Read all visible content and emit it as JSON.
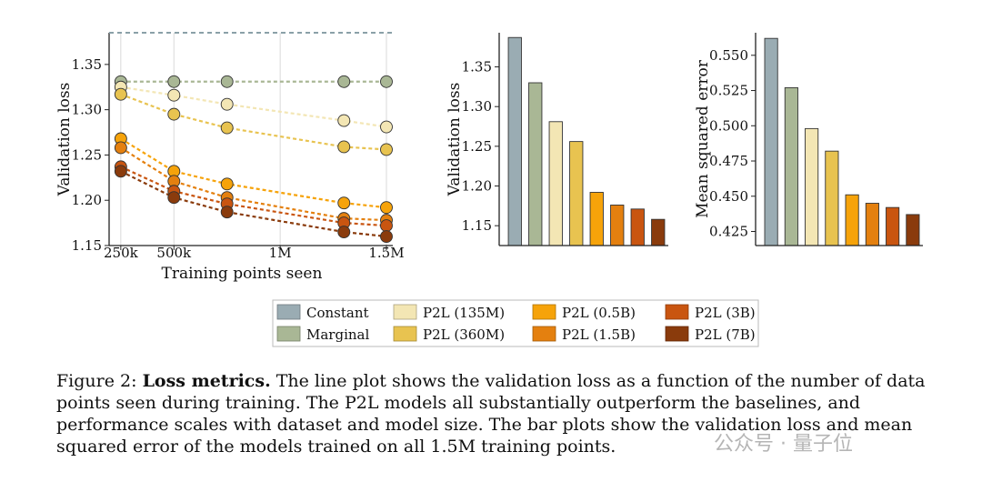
{
  "colors": {
    "Constant": "#9aacb3",
    "Marginal": "#a9b795",
    "P2L (135M)": "#f3e6b4",
    "P2L (360M)": "#e8c350",
    "P2L (0.5B)": "#f6a30a",
    "P2L (1.5B)": "#e4800f",
    "P2L (3B)": "#c95510",
    "P2L (7B)": "#8a3b0c"
  },
  "chart_data": [
    {
      "type": "line",
      "xlabel": "Training points seen",
      "ylabel": "Validation loss",
      "x_ticks": [
        {
          "value": 250000,
          "label": "250k"
        },
        {
          "value": 500000,
          "label": "500k"
        },
        {
          "value": 1000000,
          "label": "1M"
        },
        {
          "value": 1500000,
          "label": "1.5M"
        }
      ],
      "y_ticks": [
        "1.15",
        "1.20",
        "1.25",
        "1.30",
        "1.35"
      ],
      "ylim": [
        1.15,
        1.385
      ],
      "xlim": [
        195000,
        1530000
      ],
      "grid": "vertical",
      "x": [
        250000,
        500000,
        750000,
        1300000,
        1500000
      ],
      "reference_line": 1.385,
      "series": [
        {
          "name": "Constant",
          "values": [
            1.385,
            1.385,
            1.385,
            1.385,
            1.385
          ]
        },
        {
          "name": "Marginal",
          "values": [
            1.331,
            1.331,
            1.331,
            1.331,
            1.331
          ]
        },
        {
          "name": "P2L (135M)",
          "values": [
            1.325,
            1.316,
            1.306,
            1.288,
            1.281
          ]
        },
        {
          "name": "P2L (360M)",
          "values": [
            1.317,
            1.295,
            1.28,
            1.259,
            1.256
          ]
        },
        {
          "name": "P2L (0.5B)",
          "values": [
            1.268,
            1.232,
            1.218,
            1.197,
            1.192
          ]
        },
        {
          "name": "P2L (1.5B)",
          "values": [
            1.258,
            1.221,
            1.203,
            1.18,
            1.178
          ]
        },
        {
          "name": "P2L (3B)",
          "values": [
            1.237,
            1.21,
            1.196,
            1.175,
            1.172
          ]
        },
        {
          "name": "P2L (7B)",
          "values": [
            1.232,
            1.203,
            1.187,
            1.165,
            1.16
          ]
        }
      ]
    },
    {
      "type": "bar",
      "ylabel": "Validation loss",
      "y_ticks": [
        "1.15",
        "1.20",
        "1.25",
        "1.30",
        "1.35"
      ],
      "ylim": [
        1.125,
        1.393
      ],
      "categories": [
        "Constant",
        "Marginal",
        "P2L (135M)",
        "P2L (360M)",
        "P2L (0.5B)",
        "P2L (1.5B)",
        "P2L (3B)",
        "P2L (7B)"
      ],
      "values": [
        1.387,
        1.33,
        1.281,
        1.256,
        1.192,
        1.176,
        1.171,
        1.158
      ]
    },
    {
      "type": "bar",
      "ylabel": "Mean squared error",
      "y_ticks": [
        "0.425",
        "0.450",
        "0.475",
        "0.500",
        "0.525",
        "0.550"
      ],
      "ylim": [
        0.415,
        0.566
      ],
      "categories": [
        "Constant",
        "Marginal",
        "P2L (135M)",
        "P2L (360M)",
        "P2L (0.5B)",
        "P2L (1.5B)",
        "P2L (3B)",
        "P2L (7B)"
      ],
      "values": [
        0.562,
        0.527,
        0.498,
        0.482,
        0.451,
        0.445,
        0.442,
        0.437
      ]
    }
  ],
  "legend": [
    "Constant",
    "P2L (135M)",
    "P2L (0.5B)",
    "P2L (3B)",
    "Marginal",
    "P2L (360M)",
    "P2L (1.5B)",
    "P2L (7B)"
  ],
  "caption": {
    "prefix": "Figure 2: ",
    "bold": "Loss metrics.",
    "text": " The line plot shows the validation loss as a function of the number of data points seen during training. The P2L models all substantially outperform the baselines, and performance scales with dataset and model size. The bar plots show the validation loss and mean squared error of the models trained on all 1.5M training points."
  },
  "watermark": "公众号 · 量子位"
}
